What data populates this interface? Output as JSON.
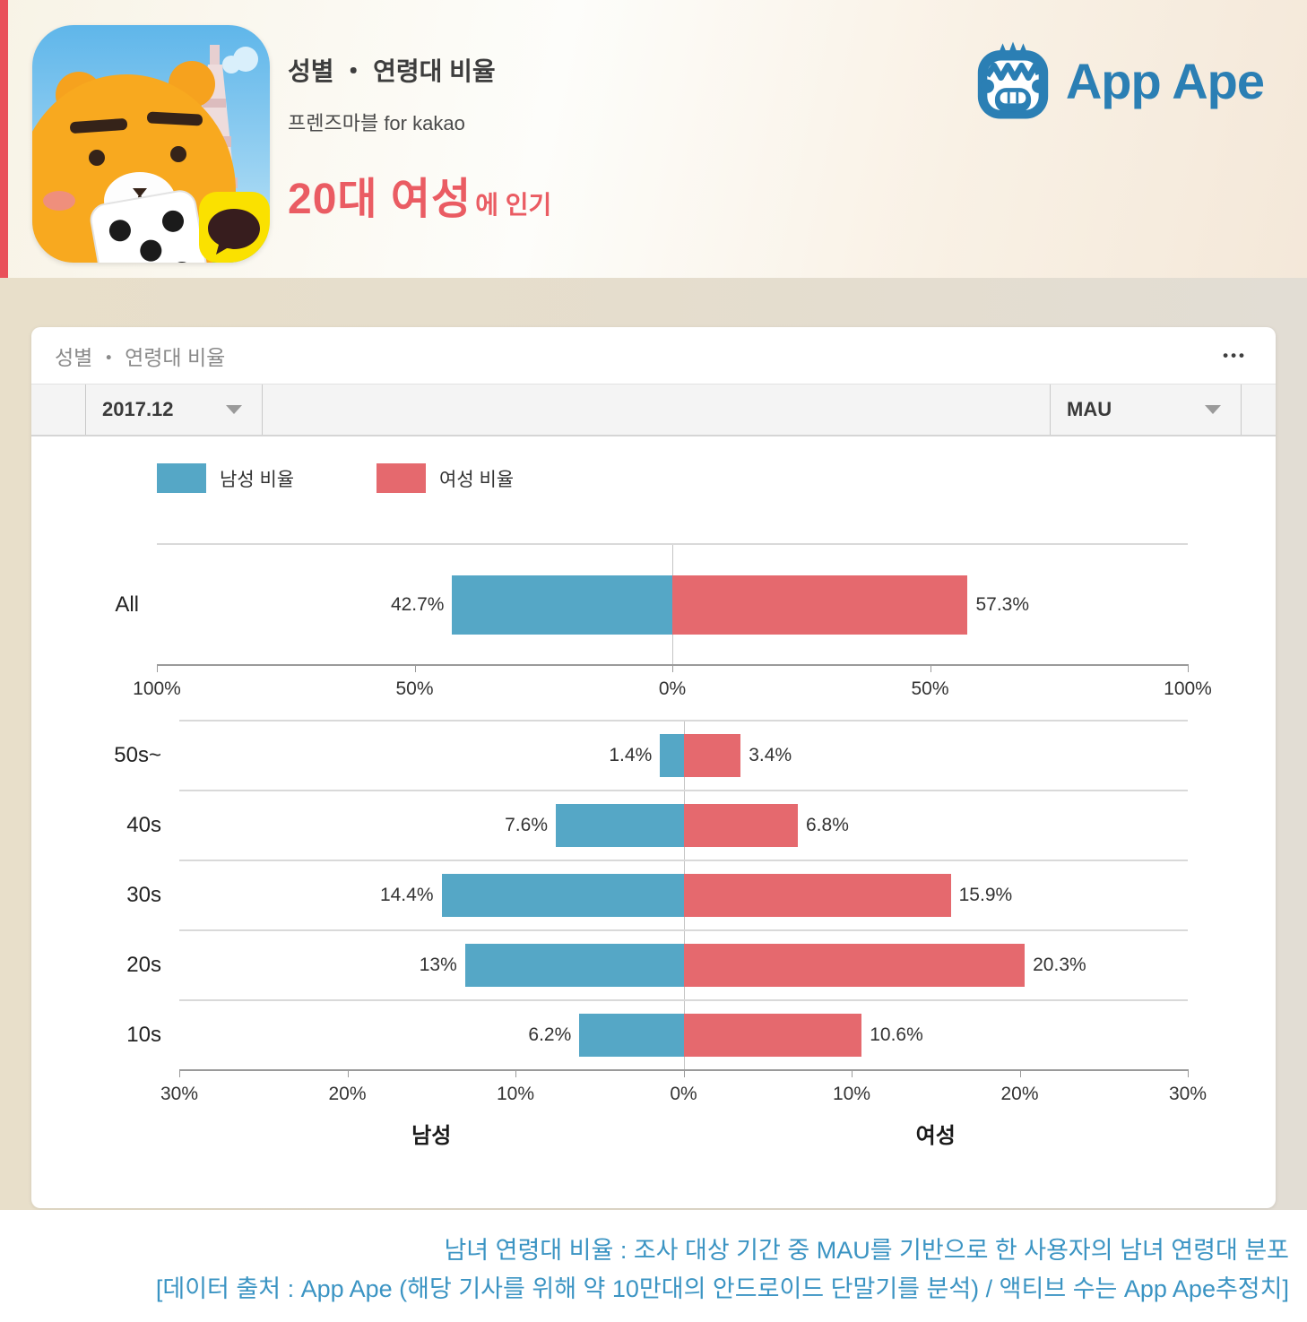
{
  "hero": {
    "title": "성별 ・ 연령대 비율",
    "subtitle": "프렌즈마블 for kakao",
    "highlight_main": "20대 여성",
    "highlight_rest": "에 인기",
    "brand_name": "App Ape",
    "accent_color": "#e9505a",
    "brand_color": "#2b7fb4"
  },
  "card": {
    "title": "성별 ・ 연령대 비율",
    "menu_icon": "•••",
    "period_value": "2017.12",
    "metric_value": "MAU",
    "legend": [
      {
        "label": "남성 비율",
        "color": "#55a7c6"
      },
      {
        "label": "여성 비율",
        "color": "#e5696e"
      }
    ]
  },
  "chart_data": [
    {
      "type": "bar",
      "subtype": "population-pyramid",
      "title": "성별 비율 (All)",
      "categories": [
        "All"
      ],
      "series": [
        {
          "name": "남성 비율",
          "side": "left",
          "color": "#55a7c6",
          "values": [
            42.7
          ]
        },
        {
          "name": "여성 비율",
          "side": "right",
          "color": "#e5696e",
          "values": [
            57.3
          ]
        }
      ],
      "value_labels": [
        [
          "42.7%",
          "57.3%"
        ]
      ],
      "xmax": 100,
      "grid": true,
      "ticks": [
        {
          "v": -100,
          "label": "100%"
        },
        {
          "v": -50,
          "label": "50%"
        },
        {
          "v": 0,
          "label": "0%"
        },
        {
          "v": 50,
          "label": "50%"
        },
        {
          "v": 100,
          "label": "100%"
        }
      ]
    },
    {
      "type": "bar",
      "subtype": "population-pyramid",
      "title": "연령대별 성별 비율",
      "categories": [
        "50s~",
        "40s",
        "30s",
        "20s",
        "10s"
      ],
      "series": [
        {
          "name": "남성 비율",
          "side": "left",
          "color": "#55a7c6",
          "values": [
            1.4,
            7.6,
            14.4,
            13,
            6.2
          ]
        },
        {
          "name": "여성 비율",
          "side": "right",
          "color": "#e5696e",
          "values": [
            3.4,
            6.8,
            15.9,
            20.3,
            10.6
          ]
        }
      ],
      "value_labels": [
        [
          "1.4%",
          "3.4%"
        ],
        [
          "7.6%",
          "6.8%"
        ],
        [
          "14.4%",
          "15.9%"
        ],
        [
          "13%",
          "20.3%"
        ],
        [
          "6.2%",
          "10.6%"
        ]
      ],
      "xmax": 30,
      "grid": true,
      "ticks": [
        {
          "v": -30,
          "label": "30%"
        },
        {
          "v": -20,
          "label": "20%"
        },
        {
          "v": -10,
          "label": "10%"
        },
        {
          "v": 0,
          "label": "0%"
        },
        {
          "v": 10,
          "label": "10%"
        },
        {
          "v": 20,
          "label": "20%"
        },
        {
          "v": 30,
          "label": "30%"
        }
      ],
      "axis_titles": {
        "left": "남성",
        "right": "여성"
      }
    }
  ],
  "footer": {
    "line1": "남녀 연령대 비율 : 조사 대상 기간 중 MAU를 기반으로 한 사용자의 남녀 연령대 분포",
    "line2": "[데이터 출처 : App Ape (해당 기사를 위해 약 10만대의 안드로이드 단말기를 분석) / 액티브 수는 App Ape추정치]"
  }
}
